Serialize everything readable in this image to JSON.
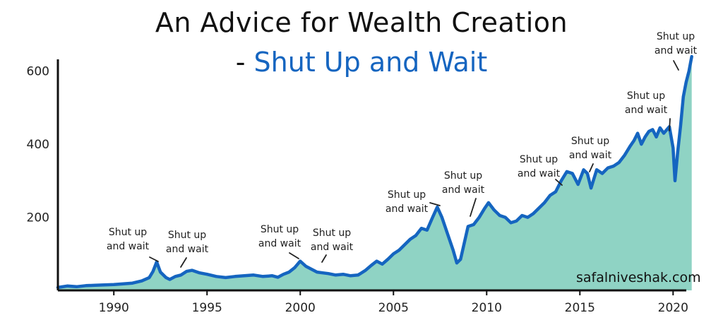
{
  "title": "An Advice for Wealth Creation",
  "subtitle_dash": "-",
  "subtitle": "Shut Up and Wait",
  "watermark": "safalniveshak.com",
  "colors": {
    "line": "#1565c0",
    "fill": "#8fd3c4",
    "subtitle": "#1565c0",
    "axis": "#111111"
  },
  "chart_data": {
    "type": "area",
    "xlim": [
      1987,
      2021.2
    ],
    "ylim": [
      0,
      640
    ],
    "x_ticks": [
      1990,
      1995,
      2000,
      2005,
      2010,
      2015,
      2020
    ],
    "x_tick_labels": [
      "1990",
      "1995",
      "2000",
      "2005",
      "2010",
      "2015",
      "2020"
    ],
    "y_ticks": [
      200,
      400,
      600
    ],
    "y_tick_labels": [
      "200",
      "400",
      "600"
    ],
    "series": [
      {
        "x": [
          1987.0,
          1987.5,
          1988.0,
          1988.5,
          1989.0,
          1989.5,
          1990.0,
          1990.5,
          1991.0,
          1991.5,
          1991.9,
          1992.1,
          1992.3,
          1992.5,
          1992.8,
          1993.0,
          1993.3,
          1993.6,
          1993.9,
          1994.2,
          1994.6,
          1995.0,
          1995.5,
          1996.0,
          1996.5,
          1997.0,
          1997.5,
          1998.0,
          1998.5,
          1998.8,
          1999.1,
          1999.4,
          1999.7,
          2000.0,
          2000.3,
          2000.6,
          2000.9,
          2001.2,
          2001.5,
          2001.9,
          2002.3,
          2002.7,
          2003.1,
          2003.5,
          2003.8,
          2004.1,
          2004.4,
          2004.7,
          2005.0,
          2005.3,
          2005.6,
          2005.9,
          2006.2,
          2006.5,
          2006.8,
          2007.1,
          2007.35,
          2007.6,
          2007.9,
          2008.2,
          2008.4,
          2008.6,
          2008.8,
          2009.0,
          2009.3,
          2009.6,
          2009.9,
          2010.1,
          2010.4,
          2010.7,
          2011.0,
          2011.3,
          2011.6,
          2011.9,
          2012.2,
          2012.5,
          2012.8,
          2013.1,
          2013.4,
          2013.7,
          2014.0,
          2014.3,
          2014.6,
          2014.9,
          2015.2,
          2015.4,
          2015.6,
          2015.9,
          2016.2,
          2016.5,
          2016.8,
          2017.1,
          2017.4,
          2017.7,
          2017.9,
          2018.1,
          2018.3,
          2018.5,
          2018.7,
          2018.9,
          2019.1,
          2019.3,
          2019.5,
          2019.8,
          2020.0,
          2020.1,
          2020.25,
          2020.4,
          2020.55,
          2020.7,
          2020.85,
          2021.0
        ],
        "values": [
          8,
          12,
          10,
          13,
          14,
          15,
          16,
          18,
          20,
          26,
          35,
          52,
          78,
          50,
          35,
          30,
          38,
          42,
          52,
          55,
          48,
          44,
          38,
          35,
          38,
          40,
          42,
          38,
          40,
          36,
          44,
          50,
          62,
          80,
          66,
          58,
          50,
          48,
          46,
          42,
          44,
          40,
          42,
          55,
          68,
          80,
          72,
          85,
          100,
          110,
          125,
          140,
          150,
          170,
          165,
          200,
          228,
          200,
          155,
          110,
          75,
          85,
          130,
          175,
          180,
          200,
          225,
          240,
          220,
          205,
          200,
          185,
          190,
          205,
          200,
          210,
          225,
          240,
          260,
          270,
          300,
          325,
          320,
          290,
          330,
          320,
          280,
          330,
          320,
          335,
          340,
          350,
          370,
          395,
          410,
          430,
          400,
          420,
          435,
          440,
          420,
          445,
          430,
          448,
          390,
          300,
          380,
          450,
          530,
          570,
          600,
          640
        ]
      }
    ],
    "annotations": [
      {
        "lines": [
          "Shut up",
          "and wait"
        ]
      },
      {
        "lines": [
          "Shut up",
          "and wait"
        ]
      },
      {
        "lines": [
          "Shut up",
          "and wait"
        ]
      },
      {
        "lines": [
          "Shut up",
          "and wait"
        ]
      },
      {
        "lines": [
          "Shut up",
          "and wait"
        ]
      },
      {
        "lines": [
          "Shut up",
          "and wait"
        ]
      },
      {
        "lines": [
          "Shut up",
          "and wait"
        ]
      },
      {
        "lines": [
          "Shut up",
          "and wait"
        ]
      },
      {
        "lines": [
          "Shut up",
          "and wait"
        ]
      },
      {
        "lines": [
          "Shut up",
          "and wait"
        ]
      }
    ]
  }
}
